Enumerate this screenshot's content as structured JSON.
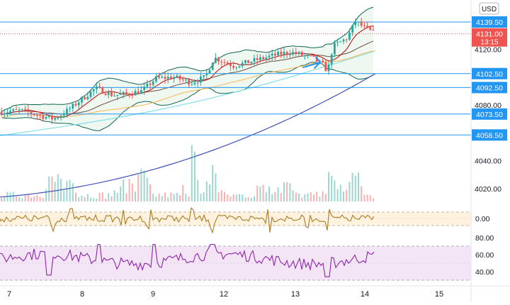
{
  "header": {
    "currency": "USD"
  },
  "colors": {
    "up": "#26a69a",
    "down": "#ef5350",
    "level_line": "#2196f3",
    "ma_slow": "#3f51b5",
    "ma_mid": "#80deea",
    "bb": "#0e6655",
    "bb_fill": "#e8f5e9",
    "ma_fast_red": "#b71c1c",
    "ma_orange": "#ffb74d",
    "osc": "#a87b1f",
    "osc_band": "#fff3e0",
    "rsi": "#8e24aa",
    "rsi_band": "#f3e5f5",
    "price_label_bg": "#ef5350",
    "level_label_bg": "#2196f3"
  },
  "chart_data": {
    "type": "candlestick",
    "title": "",
    "price_axis": {
      "ticks": [
        "4120.00",
        "4080.00",
        "4040.00",
        "4020.00"
      ],
      "ylim": [
        4012,
        4150
      ]
    },
    "x_axis": {
      "ticks": [
        "7",
        "8",
        "9",
        "12",
        "13",
        "14",
        "15"
      ]
    },
    "levels": [
      {
        "value": 4139.5,
        "label": "4139.50"
      },
      {
        "value": 4102.5,
        "label": "4102.50"
      },
      {
        "value": 4092.5,
        "label": "4092.50"
      },
      {
        "value": 4073.5,
        "label": "4073.50"
      },
      {
        "value": 4058.5,
        "label": "4058.50"
      }
    ],
    "last_price": {
      "value": 4131.0,
      "label": "4131.00",
      "countdown": "13:15"
    },
    "ma_slow": {
      "start": 4014,
      "end": 4102.5
    },
    "oscillator": {
      "ticks": [
        "0.00"
      ],
      "range": [
        -1.5,
        1.5
      ]
    },
    "rsi": {
      "ticks": [
        "80.00",
        "60.00",
        "40.00"
      ],
      "ylim": [
        27,
        88
      ],
      "band": [
        30,
        70
      ]
    }
  }
}
